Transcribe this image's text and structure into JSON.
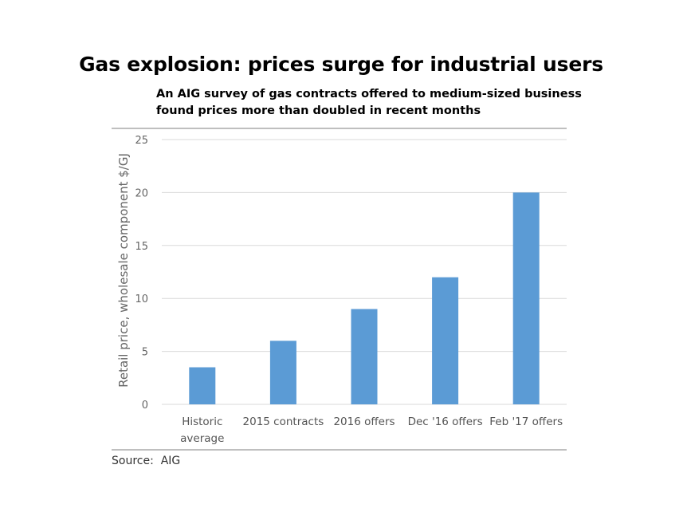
{
  "title": "Gas explosion: prices surge for industrial users",
  "subtitle": "An AIG survey of gas contracts offered to medium-sized business found prices more than doubled in recent months",
  "source": "Source:  AIG",
  "colors": {
    "bar": "#5b9bd5",
    "grid": "#d9d9d9",
    "frame": "#bfbfbf"
  },
  "chart_data": {
    "type": "bar",
    "categories": [
      [
        "Historic",
        "average"
      ],
      [
        "2015 contracts"
      ],
      [
        "2016 offers"
      ],
      [
        "Dec '16 offers"
      ],
      [
        "Feb '17 offers"
      ]
    ],
    "values": [
      3.5,
      6,
      9,
      12,
      20
    ],
    "ylabel": "Retail price, wholesale component $/GJ",
    "ylim": [
      0,
      25
    ],
    "yticks": [
      0,
      5,
      10,
      15,
      20,
      25
    ],
    "grid": true
  }
}
